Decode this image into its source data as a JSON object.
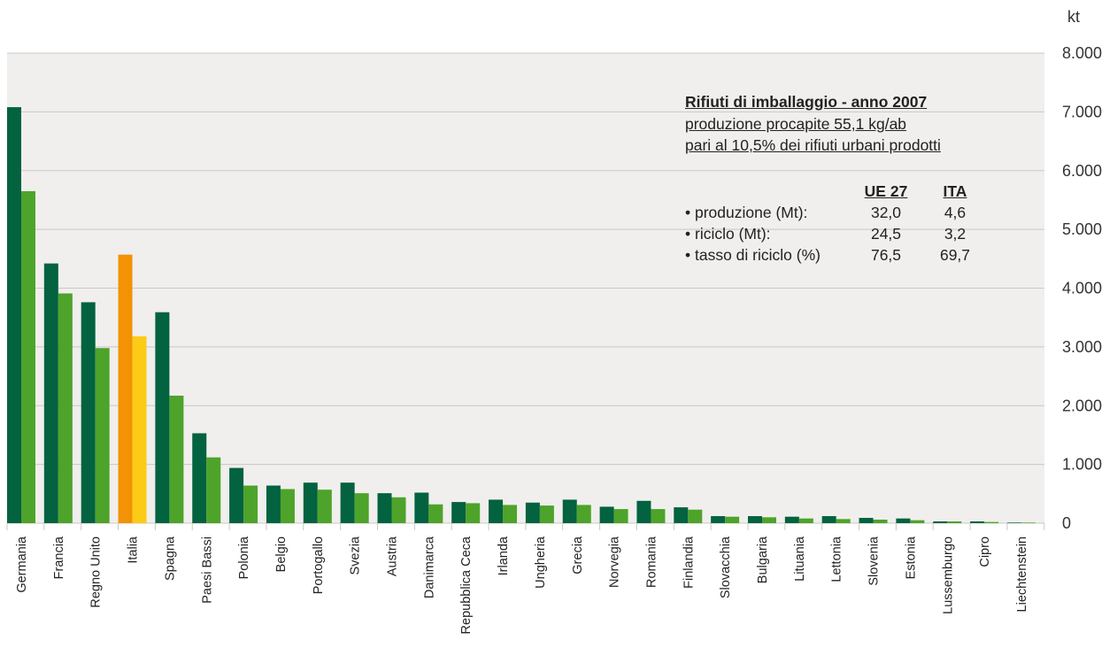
{
  "chart_data": {
    "type": "bar",
    "unit": "kt",
    "ylim": [
      0,
      8000
    ],
    "yticks": [
      0,
      1000,
      2000,
      3000,
      4000,
      5000,
      6000,
      7000,
      8000
    ],
    "ytick_labels": [
      "0",
      "1.000",
      "2.000",
      "3.000",
      "4.000",
      "5.000",
      "6.000",
      "7.000",
      "8.000"
    ],
    "categories": [
      "Germania",
      "Francia",
      "Regno Unito",
      "Italia",
      "Spagna",
      "Paesi Bassi",
      "Polonia",
      "Belgio",
      "Portogallo",
      "Svezia",
      "Austria",
      "Danimarca",
      "Repubblica Ceca",
      "Irlanda",
      "Ungheria",
      "Grecia",
      "Norvegia",
      "Romania",
      "Finlandia",
      "Slovacchia",
      "Bulgaria",
      "Lituania",
      "Lettonia",
      "Slovenia",
      "Estonia",
      "Lussemburgo",
      "Cipro",
      "Liechtenstein"
    ],
    "series": [
      {
        "values": [
          7080,
          4420,
          3760,
          4570,
          3590,
          1530,
          940,
          640,
          690,
          690,
          510,
          520,
          360,
          400,
          350,
          400,
          280,
          380,
          270,
          120,
          120,
          110,
          120,
          90,
          80,
          30,
          30,
          10
        ]
      },
      {
        "values": [
          5650,
          3910,
          2980,
          3180,
          2170,
          1120,
          640,
          580,
          570,
          510,
          440,
          320,
          340,
          310,
          300,
          310,
          240,
          240,
          230,
          110,
          100,
          80,
          70,
          60,
          50,
          30,
          20,
          10
        ]
      }
    ],
    "colors": {
      "series_0": "#03623f",
      "series_1": "#4ea32a",
      "highlight_0": "#f39205",
      "highlight_1": "#fccb16",
      "plot_bg": "#f0efed",
      "gridline": "#c9c8c6"
    },
    "highlight_category": "Italia",
    "grid": true
  },
  "info": {
    "title": "Rifiuti di imballaggio - anno 2007",
    "line1": "produzione procapite 55,1 kg/ab",
    "line2": "pari al 10,5% dei rifiuti urbani prodotti",
    "col_ue": "UE 27",
    "col_ita": "ITA",
    "rows": [
      {
        "label": "• produzione (Mt):",
        "ue": "32,0",
        "ita": "4,6"
      },
      {
        "label": "• riciclo (Mt):",
        "ue": "24,5",
        "ita": "3,2"
      },
      {
        "label": "• tasso di riciclo (%)",
        "ue": "76,5",
        "ita": "69,7"
      }
    ]
  }
}
